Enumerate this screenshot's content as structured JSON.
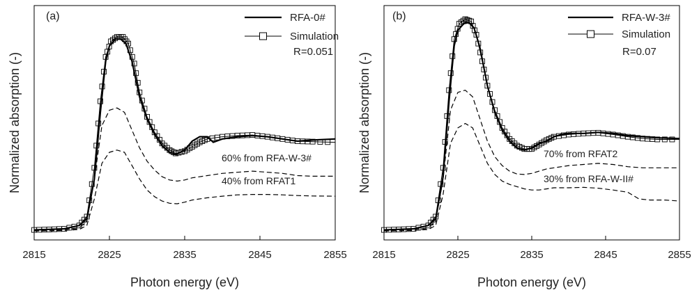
{
  "chart_data": [
    {
      "type": "line",
      "panel_label": "(a)",
      "xlabel": "Photon energy (eV)",
      "ylabel": "Normalized absorption (-)",
      "xlim": [
        2815,
        2855
      ],
      "ylim": [
        0,
        1
      ],
      "x_ticks": [
        "2815",
        "2825",
        "2835",
        "2845",
        "2855"
      ],
      "legend": {
        "position": "top-right",
        "entries": [
          "RFA-0#",
          "Simulation"
        ],
        "note": "R=0.051"
      },
      "annotations": [
        "60% from RFA-W-3#",
        "40% from RFAT1"
      ],
      "series": [
        {
          "name": "RFA-0#",
          "style": "solid-thick",
          "points": [
            [
              2815,
              0.02
            ],
            [
              2819,
              0.025
            ],
            [
              2821,
              0.04
            ],
            [
              2822,
              0.07
            ],
            [
              2823,
              0.25
            ],
            [
              2823.8,
              0.55
            ],
            [
              2824.5,
              0.78
            ],
            [
              2825,
              0.85
            ],
            [
              2825.8,
              0.88
            ],
            [
              2826.5,
              0.88
            ],
            [
              2827.2,
              0.86
            ],
            [
              2828,
              0.78
            ],
            [
              2829,
              0.62
            ],
            [
              2830,
              0.52
            ],
            [
              2831,
              0.45
            ],
            [
              2832,
              0.4
            ],
            [
              2833,
              0.37
            ],
            [
              2833.8,
              0.36
            ],
            [
              2835,
              0.38
            ],
            [
              2836,
              0.42
            ],
            [
              2837,
              0.44
            ],
            [
              2838,
              0.44
            ],
            [
              2838.8,
              0.415
            ],
            [
              2840,
              0.43
            ],
            [
              2842,
              0.44
            ],
            [
              2844,
              0.445
            ],
            [
              2846,
              0.44
            ],
            [
              2848,
              0.43
            ],
            [
              2850,
              0.42
            ],
            [
              2852,
              0.425
            ],
            [
              2855,
              0.43
            ]
          ]
        },
        {
          "name": "Simulation",
          "style": "thin-squares",
          "points": [
            [
              2815,
              0.02
            ],
            [
              2817,
              0.022
            ],
            [
              2819,
              0.025
            ],
            [
              2821,
              0.04
            ],
            [
              2822,
              0.08
            ],
            [
              2823,
              0.3
            ],
            [
              2823.8,
              0.6
            ],
            [
              2824.5,
              0.8
            ],
            [
              2825.2,
              0.87
            ],
            [
              2826,
              0.89
            ],
            [
              2826.8,
              0.89
            ],
            [
              2827.5,
              0.86
            ],
            [
              2828.3,
              0.77
            ],
            [
              2829,
              0.64
            ],
            [
              2830,
              0.53
            ],
            [
              2831,
              0.46
            ],
            [
              2832,
              0.41
            ],
            [
              2833,
              0.38
            ],
            [
              2833.8,
              0.365
            ],
            [
              2835,
              0.375
            ],
            [
              2836,
              0.395
            ],
            [
              2837,
              0.415
            ],
            [
              2838,
              0.43
            ],
            [
              2840,
              0.44
            ],
            [
              2842,
              0.445
            ],
            [
              2844,
              0.448
            ],
            [
              2846,
              0.44
            ],
            [
              2848,
              0.43
            ],
            [
              2850,
              0.42
            ],
            [
              2852,
              0.418
            ],
            [
              2855,
              0.415
            ]
          ]
        },
        {
          "name": "60% from RFA-W-3#",
          "style": "dashed",
          "points": [
            [
              2815,
              0.018
            ],
            [
              2819,
              0.022
            ],
            [
              2821,
              0.03
            ],
            [
              2822,
              0.06
            ],
            [
              2823,
              0.25
            ],
            [
              2824,
              0.49
            ],
            [
              2825,
              0.56
            ],
            [
              2826,
              0.57
            ],
            [
              2827,
              0.55
            ],
            [
              2828,
              0.47
            ],
            [
              2829,
              0.39
            ],
            [
              2830,
              0.33
            ],
            [
              2831,
              0.29
            ],
            [
              2832,
              0.26
            ],
            [
              2833,
              0.245
            ],
            [
              2834,
              0.24
            ],
            [
              2835,
              0.245
            ],
            [
              2836,
              0.255
            ],
            [
              2838,
              0.265
            ],
            [
              2840,
              0.275
            ],
            [
              2842,
              0.28
            ],
            [
              2844,
              0.285
            ],
            [
              2846,
              0.28
            ],
            [
              2848,
              0.275
            ],
            [
              2850,
              0.265
            ],
            [
              2852,
              0.262
            ],
            [
              2855,
              0.262
            ]
          ]
        },
        {
          "name": "40% from RFAT1",
          "style": "dashed",
          "points": [
            [
              2815,
              0.015
            ],
            [
              2819,
              0.018
            ],
            [
              2821,
              0.022
            ],
            [
              2822,
              0.04
            ],
            [
              2823,
              0.16
            ],
            [
              2824,
              0.32
            ],
            [
              2825,
              0.37
            ],
            [
              2826,
              0.38
            ],
            [
              2827,
              0.37
            ],
            [
              2828,
              0.31
            ],
            [
              2829,
              0.25
            ],
            [
              2830,
              0.2
            ],
            [
              2831,
              0.17
            ],
            [
              2832,
              0.15
            ],
            [
              2833,
              0.14
            ],
            [
              2834,
              0.138
            ],
            [
              2835,
              0.145
            ],
            [
              2836,
              0.155
            ],
            [
              2838,
              0.165
            ],
            [
              2840,
              0.172
            ],
            [
              2842,
              0.178
            ],
            [
              2844,
              0.18
            ],
            [
              2846,
              0.18
            ],
            [
              2848,
              0.178
            ],
            [
              2850,
              0.175
            ],
            [
              2852,
              0.173
            ],
            [
              2855,
              0.172
            ]
          ]
        }
      ]
    },
    {
      "type": "line",
      "panel_label": "(b)",
      "xlabel": "Photon energy (eV)",
      "ylabel": "Normalized absorption (-)",
      "xlim": [
        2815,
        2855
      ],
      "ylim": [
        0,
        1
      ],
      "x_ticks": [
        "2815",
        "2825",
        "2835",
        "2845",
        "2855"
      ],
      "legend": {
        "position": "top-right",
        "entries": [
          "RFA-W-3#",
          "Simulation"
        ],
        "note": "R=0.07"
      },
      "annotations": [
        "70% from RFAT2",
        "30% from RFA-W-II#"
      ],
      "series": [
        {
          "name": "RFA-W-3#",
          "style": "solid-thick",
          "points": [
            [
              2815,
              0.02
            ],
            [
              2819,
              0.025
            ],
            [
              2821,
              0.04
            ],
            [
              2822,
              0.07
            ],
            [
              2823,
              0.26
            ],
            [
              2823.8,
              0.6
            ],
            [
              2824.5,
              0.85
            ],
            [
              2825,
              0.92
            ],
            [
              2825.8,
              0.95
            ],
            [
              2826.5,
              0.955
            ],
            [
              2827.2,
              0.93
            ],
            [
              2828,
              0.84
            ],
            [
              2829,
              0.67
            ],
            [
              2830,
              0.55
            ],
            [
              2831,
              0.47
            ],
            [
              2832,
              0.42
            ],
            [
              2833,
              0.39
            ],
            [
              2834,
              0.38
            ],
            [
              2835,
              0.39
            ],
            [
              2836,
              0.41
            ],
            [
              2837,
              0.42
            ],
            [
              2838,
              0.44
            ],
            [
              2839,
              0.45
            ],
            [
              2840,
              0.455
            ],
            [
              2842,
              0.455
            ],
            [
              2844,
              0.46
            ],
            [
              2846,
              0.455
            ],
            [
              2848,
              0.445
            ],
            [
              2850,
              0.44
            ],
            [
              2852,
              0.435
            ],
            [
              2855,
              0.432
            ]
          ]
        },
        {
          "name": "Simulation",
          "style": "thin-squares",
          "points": [
            [
              2815,
              0.02
            ],
            [
              2817,
              0.022
            ],
            [
              2819,
              0.025
            ],
            [
              2821,
              0.04
            ],
            [
              2822,
              0.08
            ],
            [
              2823,
              0.3
            ],
            [
              2823.8,
              0.65
            ],
            [
              2824.5,
              0.88
            ],
            [
              2825.2,
              0.95
            ],
            [
              2826,
              0.97
            ],
            [
              2826.8,
              0.96
            ],
            [
              2827.5,
              0.9
            ],
            [
              2828.3,
              0.78
            ],
            [
              2829,
              0.67
            ],
            [
              2830,
              0.56
            ],
            [
              2831,
              0.48
            ],
            [
              2832,
              0.43
            ],
            [
              2833,
              0.4
            ],
            [
              2834,
              0.385
            ],
            [
              2835,
              0.385
            ],
            [
              2836,
              0.405
            ],
            [
              2837,
              0.425
            ],
            [
              2838,
              0.44
            ],
            [
              2840,
              0.45
            ],
            [
              2842,
              0.455
            ],
            [
              2844,
              0.458
            ],
            [
              2846,
              0.45
            ],
            [
              2848,
              0.44
            ],
            [
              2850,
              0.432
            ],
            [
              2852,
              0.428
            ],
            [
              2855,
              0.428
            ]
          ]
        },
        {
          "name": "70% from RFAT2",
          "style": "dashed",
          "points": [
            [
              2815,
              0.018
            ],
            [
              2819,
              0.022
            ],
            [
              2821,
              0.03
            ],
            [
              2822,
              0.06
            ],
            [
              2823,
              0.25
            ],
            [
              2824,
              0.56
            ],
            [
              2825,
              0.64
            ],
            [
              2826,
              0.65
            ],
            [
              2827,
              0.62
            ],
            [
              2828,
              0.52
            ],
            [
              2829,
              0.42
            ],
            [
              2830,
              0.35
            ],
            [
              2831,
              0.31
            ],
            [
              2832,
              0.285
            ],
            [
              2833,
              0.272
            ],
            [
              2834,
              0.27
            ],
            [
              2835,
              0.275
            ],
            [
              2836,
              0.285
            ],
            [
              2837,
              0.295
            ],
            [
              2838,
              0.3
            ],
            [
              2840,
              0.31
            ],
            [
              2842,
              0.315
            ],
            [
              2844,
              0.32
            ],
            [
              2846,
              0.315
            ],
            [
              2848,
              0.305
            ],
            [
              2850,
              0.3
            ],
            [
              2852,
              0.3
            ],
            [
              2855,
              0.3
            ]
          ]
        },
        {
          "name": "30% from RFA-W-II#",
          "style": "dashed",
          "points": [
            [
              2815,
              0.015
            ],
            [
              2819,
              0.018
            ],
            [
              2821,
              0.022
            ],
            [
              2822,
              0.04
            ],
            [
              2823,
              0.18
            ],
            [
              2824,
              0.41
            ],
            [
              2825,
              0.48
            ],
            [
              2826,
              0.5
            ],
            [
              2827,
              0.48
            ],
            [
              2828,
              0.4
            ],
            [
              2829,
              0.32
            ],
            [
              2830,
              0.27
            ],
            [
              2831,
              0.24
            ],
            [
              2832,
              0.225
            ],
            [
              2833,
              0.215
            ],
            [
              2834,
              0.205
            ],
            [
              2835,
              0.2
            ],
            [
              2836,
              0.2
            ],
            [
              2837,
              0.205
            ],
            [
              2838,
              0.21
            ],
            [
              2840,
              0.21
            ],
            [
              2842,
              0.212
            ],
            [
              2844,
              0.208
            ],
            [
              2846,
              0.2
            ],
            [
              2848,
              0.19
            ],
            [
              2849.5,
              0.16
            ],
            [
              2851,
              0.155
            ],
            [
              2853,
              0.155
            ],
            [
              2855,
              0.15
            ]
          ]
        }
      ]
    }
  ]
}
